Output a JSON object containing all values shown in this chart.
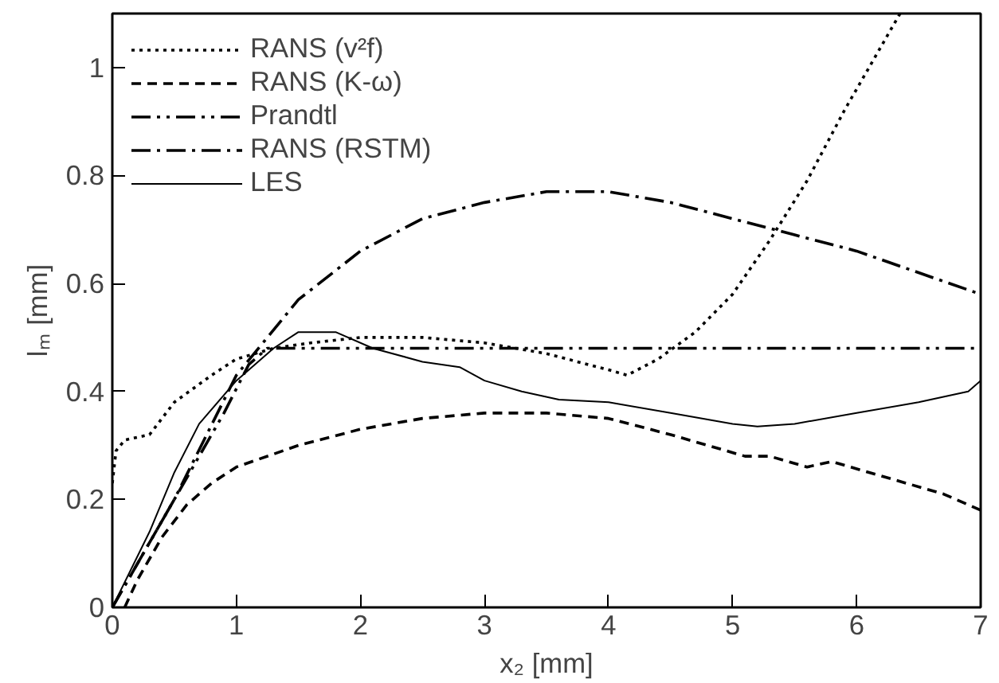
{
  "chart_data": {
    "type": "line",
    "xlabel": "x₂ [mm]",
    "ylabel": "lₘ [mm]",
    "xlim": [
      0,
      7
    ],
    "ylim": [
      0,
      1.1
    ],
    "xticks": [
      0,
      1,
      2,
      3,
      4,
      5,
      6,
      7
    ],
    "yticks": [
      0,
      {
        "value": 0.2,
        "label": "0.2"
      },
      {
        "value": 0.4,
        "label": "0.4"
      },
      {
        "value": 0.6,
        "label": "0.6"
      },
      {
        "value": 0.8,
        "label": "0.8"
      },
      1
    ],
    "grid": false,
    "legend": "top left",
    "marker": "none",
    "series": [
      {
        "name": "RANS (v²f)",
        "color": "#000000",
        "line_style": "dotted",
        "x": [
          0,
          0.03,
          0.1,
          0.3,
          0.5,
          0.8,
          1.0,
          1.3,
          1.6,
          2,
          2.5,
          3,
          3.5,
          4.0,
          4.15,
          4.4,
          4.7,
          5.0,
          5.3,
          5.6,
          5.9,
          6.2,
          6.35
        ],
        "values": [
          0.23,
          0.29,
          0.31,
          0.32,
          0.38,
          0.43,
          0.46,
          0.48,
          0.49,
          0.5,
          0.5,
          0.49,
          0.47,
          0.44,
          0.43,
          0.46,
          0.51,
          0.58,
          0.68,
          0.79,
          0.92,
          1.04,
          1.1
        ]
      },
      {
        "name": "RANS (K-ω)",
        "color": "#000000",
        "line_style": "dashed",
        "x": [
          0.1,
          0.2,
          0.4,
          0.6,
          0.8,
          1.0,
          1.5,
          2,
          2.5,
          3,
          3.5,
          4,
          4.5,
          4.8,
          5.1,
          5.3,
          5.6,
          5.8,
          6.1,
          6.4,
          6.7,
          7
        ],
        "values": [
          0,
          0.05,
          0.13,
          0.19,
          0.23,
          0.26,
          0.3,
          0.33,
          0.35,
          0.36,
          0.36,
          0.35,
          0.32,
          0.3,
          0.28,
          0.28,
          0.26,
          0.27,
          0.25,
          0.23,
          0.21,
          0.18
        ]
      },
      {
        "name": "Prandtl",
        "color": "#000000",
        "line_style": "dashdotdot",
        "x": [
          0,
          0.3,
          0.6,
          0.9,
          1.1,
          1.25,
          7
        ],
        "values": [
          0,
          0.12,
          0.24,
          0.36,
          0.45,
          0.48,
          0.48
        ]
      },
      {
        "name": "RANS (RSTM)",
        "color": "#000000",
        "line_style": "dashdot",
        "x": [
          0,
          0.5,
          1,
          1.5,
          2,
          2.5,
          3,
          3.5,
          4,
          4.5,
          5,
          5.5,
          6,
          6.5,
          7
        ],
        "values": [
          0,
          0.2,
          0.43,
          0.57,
          0.66,
          0.72,
          0.75,
          0.77,
          0.77,
          0.75,
          0.72,
          0.69,
          0.66,
          0.62,
          0.58
        ]
      },
      {
        "name": "LES",
        "color": "#000000",
        "line_style": "solid",
        "x": [
          0,
          0.3,
          0.5,
          0.7,
          1,
          1.3,
          1.5,
          1.8,
          2.1,
          2.5,
          2.8,
          3,
          3.3,
          3.6,
          4,
          4.5,
          5,
          5.2,
          5.5,
          6,
          6.5,
          6.9,
          7
        ],
        "values": [
          0,
          0.14,
          0.25,
          0.34,
          0.42,
          0.48,
          0.51,
          0.51,
          0.48,
          0.455,
          0.445,
          0.42,
          0.4,
          0.385,
          0.38,
          0.36,
          0.34,
          0.335,
          0.34,
          0.36,
          0.38,
          0.4,
          0.42
        ]
      }
    ]
  }
}
